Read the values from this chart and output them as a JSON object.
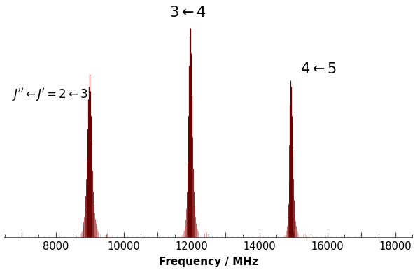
{
  "xlabel": "Frequency / MHz",
  "xlim": [
    6500,
    18500
  ],
  "ylim": [
    0,
    1.08
  ],
  "bg_color": "#ffffff",
  "line_color_dark": "#6b0000",
  "line_color_mid": "#9b2020",
  "line_color_light": "#c06060",
  "line_color_faint": "#d49090",
  "annotation_23": "$J'' \\leftarrow J' = 2 \\leftarrow 3$",
  "annotation_34": "$3 \\leftarrow 4$",
  "annotation_45": "$4 \\leftarrow 5$",
  "lines_group1": [
    [
      7200,
      0.012
    ],
    [
      7350,
      0.008
    ],
    [
      7500,
      0.01
    ],
    [
      7650,
      0.009
    ],
    [
      7800,
      0.011
    ],
    [
      7950,
      0.009
    ],
    [
      8100,
      0.01
    ],
    [
      8250,
      0.008
    ],
    [
      8600,
      0.012
    ],
    [
      8700,
      0.015
    ],
    [
      8720,
      0.02
    ],
    [
      8740,
      0.025
    ],
    [
      8760,
      0.03
    ],
    [
      8780,
      0.04
    ],
    [
      8800,
      0.055
    ],
    [
      8820,
      0.075
    ],
    [
      8840,
      0.1
    ],
    [
      8860,
      0.14
    ],
    [
      8880,
      0.2
    ],
    [
      8900,
      0.28
    ],
    [
      8920,
      0.38
    ],
    [
      8940,
      0.52
    ],
    [
      8960,
      0.66
    ],
    [
      8980,
      0.72
    ],
    [
      9000,
      0.78
    ],
    [
      9020,
      0.7
    ],
    [
      9040,
      0.58
    ],
    [
      9060,
      0.45
    ],
    [
      9080,
      0.32
    ],
    [
      9100,
      0.22
    ],
    [
      9120,
      0.16
    ],
    [
      9140,
      0.12
    ],
    [
      9160,
      0.09
    ],
    [
      9180,
      0.07
    ],
    [
      9200,
      0.055
    ],
    [
      9220,
      0.04
    ],
    [
      9240,
      0.03
    ],
    [
      9260,
      0.025
    ],
    [
      9300,
      0.02
    ],
    [
      9450,
      0.015
    ],
    [
      9480,
      0.02
    ],
    [
      9510,
      0.025
    ],
    [
      9540,
      0.02
    ],
    [
      9650,
      0.012
    ],
    [
      9800,
      0.01
    ],
    [
      9950,
      0.009
    ],
    [
      10100,
      0.012
    ],
    [
      10250,
      0.009
    ],
    [
      10400,
      0.008
    ],
    [
      10600,
      0.007
    ]
  ],
  "lines_group2": [
    [
      10700,
      0.008
    ],
    [
      10850,
      0.009
    ],
    [
      11000,
      0.01
    ],
    [
      11150,
      0.009
    ],
    [
      11300,
      0.01
    ],
    [
      11450,
      0.009
    ],
    [
      11600,
      0.01
    ],
    [
      11700,
      0.012
    ],
    [
      11720,
      0.015
    ],
    [
      11740,
      0.018
    ],
    [
      11760,
      0.025
    ],
    [
      11780,
      0.035
    ],
    [
      11800,
      0.055
    ],
    [
      11820,
      0.085
    ],
    [
      11840,
      0.14
    ],
    [
      11860,
      0.22
    ],
    [
      11880,
      0.36
    ],
    [
      11900,
      0.58
    ],
    [
      11920,
      0.82
    ],
    [
      11940,
      0.96
    ],
    [
      11960,
      1.0
    ],
    [
      11980,
      0.88
    ],
    [
      12000,
      0.68
    ],
    [
      12020,
      0.48
    ],
    [
      12040,
      0.33
    ],
    [
      12060,
      0.22
    ],
    [
      12080,
      0.15
    ],
    [
      12100,
      0.1
    ],
    [
      12120,
      0.07
    ],
    [
      12140,
      0.05
    ],
    [
      12160,
      0.038
    ],
    [
      12180,
      0.028
    ],
    [
      12200,
      0.02
    ],
    [
      12350,
      0.016
    ],
    [
      12380,
      0.022
    ],
    [
      12410,
      0.032
    ],
    [
      12440,
      0.025
    ],
    [
      12470,
      0.018
    ],
    [
      12600,
      0.012
    ],
    [
      12750,
      0.01
    ],
    [
      12900,
      0.011
    ],
    [
      13050,
      0.009
    ],
    [
      13200,
      0.009
    ],
    [
      13350,
      0.008
    ],
    [
      13500,
      0.007
    ],
    [
      13650,
      0.007
    ]
  ],
  "lines_group3": [
    [
      13800,
      0.007
    ],
    [
      13950,
      0.008
    ],
    [
      14100,
      0.009
    ],
    [
      14250,
      0.008
    ],
    [
      14400,
      0.009
    ],
    [
      14550,
      0.009
    ],
    [
      14700,
      0.01
    ],
    [
      14720,
      0.012
    ],
    [
      14740,
      0.016
    ],
    [
      14760,
      0.022
    ],
    [
      14780,
      0.032
    ],
    [
      14800,
      0.055
    ],
    [
      14820,
      0.095
    ],
    [
      14840,
      0.16
    ],
    [
      14860,
      0.27
    ],
    [
      14880,
      0.44
    ],
    [
      14900,
      0.63
    ],
    [
      14920,
      0.75
    ],
    [
      14940,
      0.72
    ],
    [
      14960,
      0.58
    ],
    [
      14980,
      0.42
    ],
    [
      15000,
      0.28
    ],
    [
      15020,
      0.18
    ],
    [
      15040,
      0.12
    ],
    [
      15060,
      0.08
    ],
    [
      15080,
      0.055
    ],
    [
      15100,
      0.038
    ],
    [
      15120,
      0.028
    ],
    [
      15140,
      0.02
    ],
    [
      15280,
      0.014
    ],
    [
      15310,
      0.022
    ],
    [
      15340,
      0.018
    ],
    [
      15370,
      0.012
    ],
    [
      15500,
      0.012
    ],
    [
      15650,
      0.01
    ],
    [
      15800,
      0.01
    ],
    [
      15950,
      0.009
    ],
    [
      16100,
      0.009
    ],
    [
      16250,
      0.008
    ],
    [
      16400,
      0.008
    ],
    [
      16600,
      0.007
    ],
    [
      16800,
      0.007
    ],
    [
      17000,
      0.007
    ],
    [
      17200,
      0.006
    ],
    [
      17500,
      0.006
    ],
    [
      18000,
      0.005
    ]
  ]
}
